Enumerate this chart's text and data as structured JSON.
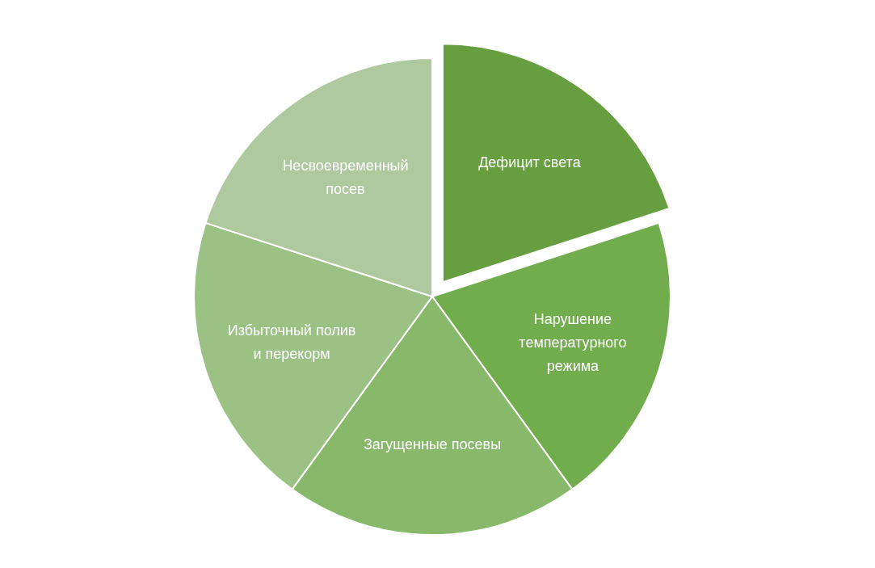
{
  "chart_data": {
    "type": "pie",
    "categories": [
      "Дефицит света",
      "Нарушение температурного режима",
      "Загущенные посевы",
      "Избыточный полив и перекорм",
      "Несвоевременный посев"
    ],
    "values": [
      20,
      20,
      20,
      20,
      20
    ],
    "colors": [
      "#669e40",
      "#72ad4d",
      "#88b86a",
      "#9cc184",
      "#aec99d"
    ],
    "legend": false
  }
}
